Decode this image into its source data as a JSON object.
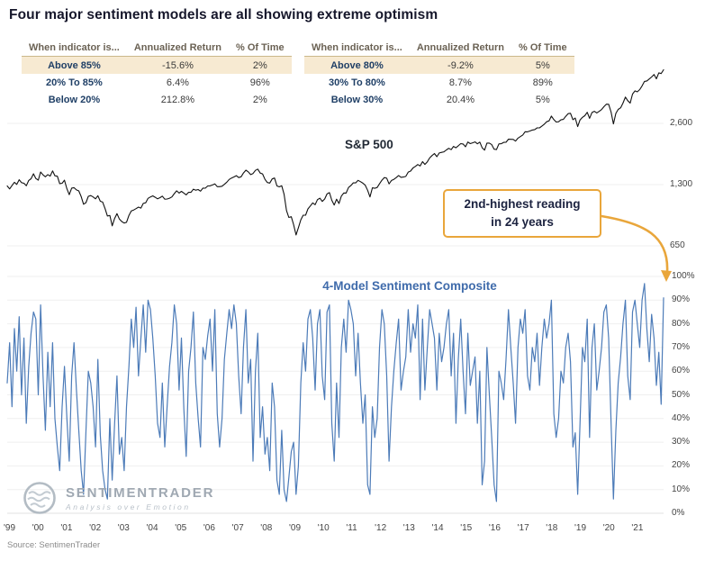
{
  "title": "Four major sentiment models are all showing extreme optimism",
  "colors": {
    "accent_orange": "#E9A63B",
    "spx_line": "#111111",
    "sentiment_line": "#4C7BB8",
    "navy": "#1F3F66",
    "beige_highlight": "#F7EAD2"
  },
  "tables": [
    {
      "headers": [
        "When indicator is...",
        "Annualized Return",
        "% Of Time"
      ],
      "rows": [
        [
          "Above 85%",
          "-15.6%",
          "2%"
        ],
        [
          "20% To 85%",
          "6.4%",
          "96%"
        ],
        [
          "Below 20%",
          "212.8%",
          "2%"
        ]
      ]
    },
    {
      "headers": [
        "When indicator is...",
        "Annualized Return",
        "% Of Time"
      ],
      "rows": [
        [
          "Above 80%",
          "-9.2%",
          "5%"
        ],
        [
          "30% To 80%",
          "8.7%",
          "89%"
        ],
        [
          "Below 30%",
          "20.4%",
          "5%"
        ]
      ]
    }
  ],
  "annotation": {
    "line1": "2nd-highest reading",
    "line2": "in 24 years"
  },
  "watermark": {
    "name": "SENTIMENTRADER",
    "tagline": "Analysis over Emotion"
  },
  "source": "Source: SentimenTrader",
  "x_axis_labels": [
    "'99",
    "'00",
    "'01",
    "'02",
    "'03",
    "'04",
    "'05",
    "'06",
    "'07",
    "'08",
    "'09",
    "'10",
    "'11",
    "'12",
    "'13",
    "'14",
    "'15",
    "'16",
    "'17",
    "'18",
    "'19",
    "'20",
    "'21"
  ],
  "chart_data": [
    {
      "type": "line",
      "title": "S&P 500",
      "x_range": [
        "1999",
        "2021"
      ],
      "x_interval": "monthly",
      "yscale": "log",
      "yticks": [
        2600,
        1300,
        650
      ],
      "ytick_labels": [
        "2,600",
        "1,300",
        "650"
      ],
      "line_color": "#111111",
      "series": [
        {
          "name": "S&P 500",
          "values": [
            1280,
            1238,
            1286,
            1335,
            1302,
            1373,
            1329,
            1320,
            1283,
            1363,
            1389,
            1469,
            1394,
            1366,
            1499,
            1452,
            1421,
            1455,
            1431,
            1518,
            1436,
            1429,
            1315,
            1320,
            1366,
            1240,
            1160,
            1249,
            1256,
            1224,
            1211,
            1134,
            1041,
            1060,
            1139,
            1148,
            1130,
            1107,
            1147,
            1077,
            1067,
            990,
            911,
            916,
            815,
            886,
            936,
            880,
            856,
            841,
            848,
            917,
            964,
            975,
            990,
            1008,
            996,
            1051,
            1058,
            1112,
            1131,
            1145,
            1126,
            1107,
            1121,
            1141,
            1102,
            1104,
            1115,
            1130,
            1174,
            1212,
            1181,
            1204,
            1181,
            1157,
            1192,
            1191,
            1234,
            1220,
            1229,
            1207,
            1249,
            1248,
            1280,
            1281,
            1295,
            1311,
            1270,
            1270,
            1277,
            1304,
            1336,
            1378,
            1401,
            1418,
            1438,
            1407,
            1421,
            1482,
            1531,
            1503,
            1455,
            1474,
            1527,
            1549,
            1481,
            1468,
            1379,
            1331,
            1323,
            1386,
            1400,
            1280,
            1267,
            1283,
            1166,
            969,
            896,
            903,
            826,
            735,
            798,
            873,
            919,
            919,
            987,
            1021,
            1057,
            1036,
            1096,
            1115,
            1074,
            1104,
            1169,
            1187,
            1089,
            1031,
            1102,
            1049,
            1141,
            1183,
            1181,
            1258,
            1286,
            1327,
            1326,
            1364,
            1345,
            1321,
            1292,
            1219,
            1131,
            1253,
            1247,
            1258,
            1312,
            1366,
            1408,
            1398,
            1310,
            1362,
            1379,
            1407,
            1441,
            1412,
            1416,
            1426,
            1498,
            1515,
            1569,
            1598,
            1631,
            1606,
            1686,
            1633,
            1682,
            1757,
            1806,
            1848,
            1783,
            1859,
            1872,
            1884,
            1924,
            1960,
            1931,
            2003,
            1972,
            2018,
            2068,
            2059,
            1995,
            2105,
            2068,
            2086,
            2107,
            2063,
            2104,
            1972,
            1920,
            2079,
            2080,
            2044,
            1940,
            1932,
            2060,
            2065,
            2097,
            2099,
            2174,
            2171,
            2168,
            2126,
            2199,
            2239,
            2279,
            2364,
            2363,
            2384,
            2412,
            2423,
            2470,
            2472,
            2519,
            2575,
            2648,
            2674,
            2824,
            2714,
            2641,
            2648,
            2705,
            2718,
            2816,
            2902,
            2914,
            2712,
            2760,
            2507,
            2704,
            2784,
            2834,
            2946,
            2752,
            2942,
            2980,
            2926,
            2977,
            3038,
            3141,
            3231,
            3226,
            2954,
            2585,
            2912,
            3044,
            3100,
            3271,
            3500,
            3363,
            3270,
            3622,
            3756,
            3714,
            3811,
            3973,
            4181,
            4204,
            4298,
            4395,
            4523,
            4308,
            4605,
            4567,
            4766
          ]
        }
      ]
    },
    {
      "type": "line",
      "title": "4-Model Sentiment Composite",
      "x_range": [
        "1999",
        "2021"
      ],
      "x_interval": "monthly",
      "ylim": [
        0,
        100
      ],
      "yticks": [
        0,
        10,
        20,
        30,
        40,
        50,
        60,
        70,
        80,
        90,
        100
      ],
      "ytick_suffix": "%",
      "line_color": "#4C7BB8",
      "series": [
        {
          "name": "4-Model Sentiment Composite",
          "values": [
            55,
            72,
            45,
            78,
            60,
            83,
            50,
            74,
            38,
            62,
            76,
            85,
            82,
            50,
            88,
            58,
            35,
            68,
            45,
            72,
            40,
            28,
            18,
            45,
            62,
            40,
            22,
            58,
            72,
            52,
            35,
            18,
            8,
            35,
            60,
            55,
            45,
            28,
            65,
            33,
            18,
            10,
            6,
            40,
            14,
            38,
            58,
            25,
            32,
            18,
            45,
            62,
            82,
            70,
            87,
            58,
            74,
            88,
            68,
            90,
            86,
            74,
            58,
            38,
            32,
            55,
            28,
            45,
            62,
            72,
            88,
            80,
            52,
            74,
            44,
            24,
            60,
            70,
            85,
            55,
            40,
            28,
            70,
            65,
            75,
            82,
            60,
            86,
            42,
            28,
            40,
            65,
            76,
            86,
            78,
            88,
            80,
            58,
            42,
            70,
            86,
            55,
            65,
            22,
            60,
            76,
            32,
            45,
            25,
            32,
            18,
            55,
            45,
            14,
            8,
            35,
            10,
            5,
            15,
            26,
            30,
            8,
            20,
            55,
            72,
            60,
            82,
            86,
            74,
            52,
            80,
            86,
            58,
            48,
            85,
            88,
            38,
            22,
            55,
            32,
            70,
            82,
            68,
            90,
            86,
            80,
            58,
            76,
            55,
            38,
            50,
            12,
            8,
            45,
            32,
            40,
            70,
            86,
            80,
            58,
            22,
            45,
            60,
            72,
            82,
            52,
            60,
            66,
            86,
            68,
            80,
            74,
            88,
            48,
            82,
            52,
            70,
            86,
            80,
            74,
            52,
            76,
            64,
            70,
            80,
            86,
            58,
            76,
            38,
            65,
            82,
            60,
            42,
            76,
            54,
            60,
            66,
            38,
            60,
            12,
            22,
            70,
            50,
            32,
            12,
            5,
            60,
            55,
            48,
            65,
            86,
            70,
            55,
            38,
            70,
            82,
            76,
            86,
            58,
            52,
            70,
            64,
            76,
            54,
            70,
            82,
            74,
            80,
            90,
            42,
            32,
            40,
            60,
            55,
            70,
            76,
            64,
            28,
            34,
            8,
            38,
            70,
            64,
            82,
            32,
            70,
            80,
            52,
            60,
            70,
            85,
            88,
            74,
            38,
            6,
            35,
            55,
            66,
            80,
            90,
            58,
            48,
            85,
            90,
            80,
            70,
            90,
            97,
            78,
            64,
            84,
            74,
            54,
            68,
            46,
            91
          ]
        }
      ]
    }
  ]
}
